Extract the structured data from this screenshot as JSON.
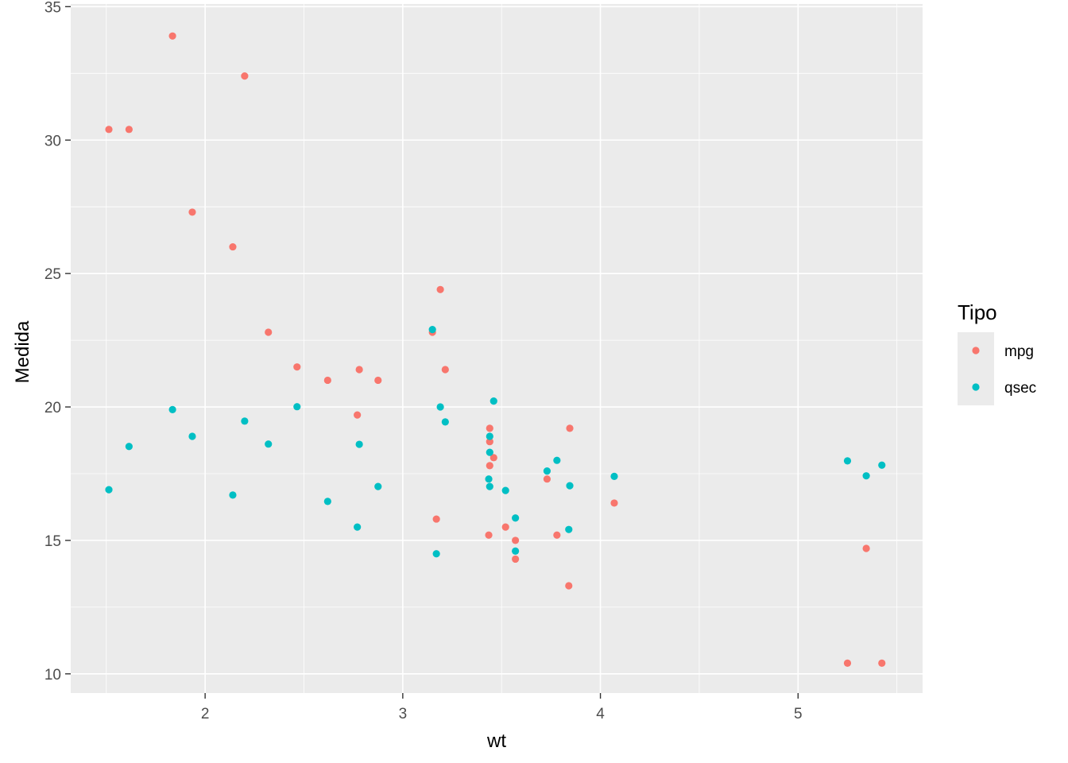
{
  "chart_data": {
    "type": "scatter",
    "xlabel": "wt",
    "ylabel": "Medida",
    "xlim": [
      1.32,
      5.63
    ],
    "ylim": [
      9.28,
      35.1
    ],
    "x_ticks": [
      2,
      3,
      4,
      5
    ],
    "y_ticks": [
      10,
      15,
      20,
      25,
      30,
      35
    ],
    "grid": true,
    "legend": {
      "title": "Tipo",
      "placement": "right"
    },
    "series": [
      {
        "name": "mpg",
        "color": "#F8766D",
        "points": [
          [
            2.62,
            21.0
          ],
          [
            2.875,
            21.0
          ],
          [
            2.32,
            22.8
          ],
          [
            3.215,
            21.4
          ],
          [
            3.44,
            18.7
          ],
          [
            3.46,
            18.1
          ],
          [
            3.57,
            14.3
          ],
          [
            3.19,
            24.4
          ],
          [
            3.15,
            22.8
          ],
          [
            3.44,
            19.2
          ],
          [
            3.44,
            17.8
          ],
          [
            4.07,
            16.4
          ],
          [
            3.73,
            17.3
          ],
          [
            3.78,
            15.2
          ],
          [
            5.25,
            10.4
          ],
          [
            5.424,
            10.4
          ],
          [
            5.345,
            14.7
          ],
          [
            2.2,
            32.4
          ],
          [
            1.615,
            30.4
          ],
          [
            1.835,
            33.9
          ],
          [
            2.465,
            21.5
          ],
          [
            3.52,
            15.5
          ],
          [
            3.435,
            15.2
          ],
          [
            3.84,
            13.3
          ],
          [
            3.845,
            19.2
          ],
          [
            1.935,
            27.3
          ],
          [
            2.14,
            26.0
          ],
          [
            1.513,
            30.4
          ],
          [
            3.17,
            15.8
          ],
          [
            2.77,
            19.7
          ],
          [
            3.57,
            15.0
          ],
          [
            2.78,
            21.4
          ]
        ]
      },
      {
        "name": "qsec",
        "color": "#00BFC4",
        "points": [
          [
            2.62,
            16.46
          ],
          [
            2.875,
            17.02
          ],
          [
            2.32,
            18.61
          ],
          [
            3.215,
            19.44
          ],
          [
            3.44,
            17.02
          ],
          [
            3.46,
            20.22
          ],
          [
            3.57,
            15.84
          ],
          [
            3.19,
            20.0
          ],
          [
            3.15,
            22.9
          ],
          [
            3.44,
            18.3
          ],
          [
            3.44,
            18.9
          ],
          [
            4.07,
            17.4
          ],
          [
            3.73,
            17.6
          ],
          [
            3.78,
            18.0
          ],
          [
            5.25,
            17.98
          ],
          [
            5.424,
            17.82
          ],
          [
            5.345,
            17.42
          ],
          [
            2.2,
            19.47
          ],
          [
            1.615,
            18.52
          ],
          [
            1.835,
            19.9
          ],
          [
            2.465,
            20.01
          ],
          [
            3.52,
            16.87
          ],
          [
            3.435,
            17.3
          ],
          [
            3.84,
            15.41
          ],
          [
            3.845,
            17.05
          ],
          [
            1.935,
            18.9
          ],
          [
            2.14,
            16.7
          ],
          [
            1.513,
            16.9
          ],
          [
            3.17,
            14.5
          ],
          [
            2.77,
            15.5
          ],
          [
            3.57,
            14.6
          ],
          [
            2.78,
            18.6
          ]
        ]
      }
    ]
  }
}
